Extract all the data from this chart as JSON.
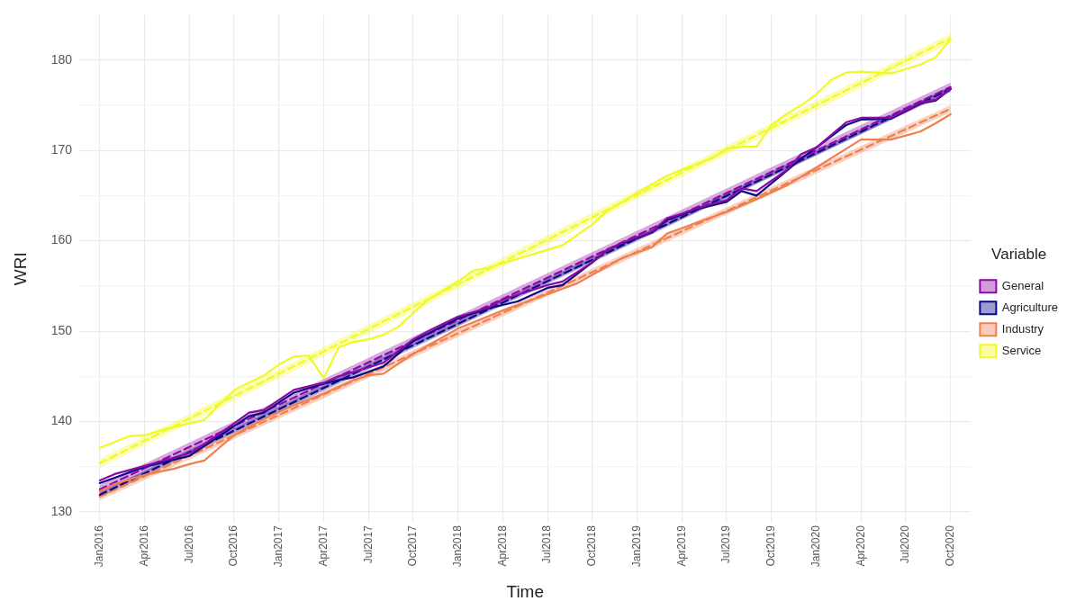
{
  "chart_data": {
    "type": "line",
    "xlabel": "Time",
    "ylabel": "WRI",
    "legend_title": "Variable",
    "legend": "right",
    "grid": true,
    "marker": "none",
    "xlim": [
      "2015-11-20",
      "2020-11-12"
    ],
    "ylim": [
      128.8,
      185
    ],
    "xticks": [
      {
        "value": "2016-01",
        "label": "Jan2016"
      },
      {
        "value": "2016-04",
        "label": "Apr2016"
      },
      {
        "value": "2016-07",
        "label": "Jul2016"
      },
      {
        "value": "2016-10",
        "label": "Oct2016"
      },
      {
        "value": "2017-01",
        "label": "Jan2017"
      },
      {
        "value": "2017-04",
        "label": "Apr2017"
      },
      {
        "value": "2017-07",
        "label": "Jul2017"
      },
      {
        "value": "2017-10",
        "label": "Oct2017"
      },
      {
        "value": "2018-01",
        "label": "Jan2018"
      },
      {
        "value": "2018-04",
        "label": "Apr2018"
      },
      {
        "value": "2018-07",
        "label": "Jul2018"
      },
      {
        "value": "2018-10",
        "label": "Oct2018"
      },
      {
        "value": "2019-01",
        "label": "Jan2019"
      },
      {
        "value": "2019-04",
        "label": "Apr2019"
      },
      {
        "value": "2019-07",
        "label": "Jul2019"
      },
      {
        "value": "2019-10",
        "label": "Oct2019"
      },
      {
        "value": "2020-01",
        "label": "Jan2020"
      },
      {
        "value": "2020-04",
        "label": "Apr2020"
      },
      {
        "value": "2020-07",
        "label": "Jul2020"
      },
      {
        "value": "2020-10",
        "label": "Oct2020"
      }
    ],
    "yticks": [
      130,
      {
        "value": 135,
        "label": null
      },
      140,
      {
        "value": 145,
        "label": null
      },
      150,
      {
        "value": 155,
        "label": null
      },
      160,
      {
        "value": 165,
        "label": null
      },
      170,
      {
        "value": 175,
        "label": null
      },
      180
    ],
    "series": [
      {
        "name": "General",
        "color": "#8b0aa5",
        "x": [
          "2016-01",
          "2016-02",
          "2016-04",
          "2016-07",
          "2016-08",
          "2016-10",
          "2016-11",
          "2016-12",
          "2017-02",
          "2017-03",
          "2017-04",
          "2017-05",
          "2017-06",
          "2017-08",
          "2017-10",
          "2017-11",
          "2017-12",
          "2018-01",
          "2018-03",
          "2018-04",
          "2018-07",
          "2018-08",
          "2018-10",
          "2018-11",
          "2018-12",
          "2019-02",
          "2019-03",
          "2019-04",
          "2019-05",
          "2019-07",
          "2019-08",
          "2019-09",
          "2019-11",
          "2019-12",
          "2020-01",
          "2020-03",
          "2020-04",
          "2020-06",
          "2020-08",
          "2020-09",
          "2020-10"
        ],
        "values": [
          133.5,
          134.2,
          135.1,
          136.5,
          137.5,
          139.8,
          141.0,
          141.3,
          143.5,
          143.9,
          144.3,
          145.0,
          145.5,
          146.5,
          149.1,
          150.0,
          150.8,
          151.6,
          152.6,
          153.5,
          155.1,
          155.5,
          157.6,
          159.0,
          159.8,
          161.0,
          162.5,
          163.0,
          163.6,
          164.5,
          165.8,
          165.5,
          167.8,
          169.6,
          170.3,
          173.1,
          173.6,
          173.6,
          175.3,
          175.6,
          176.8
        ]
      },
      {
        "name": "Agriculture",
        "color": "#0d0887",
        "x": [
          "2016-01",
          "2016-02",
          "2016-04",
          "2016-07",
          "2016-08",
          "2016-10",
          "2016-11",
          "2016-12",
          "2017-02",
          "2017-04",
          "2017-05",
          "2017-06",
          "2017-08",
          "2017-10",
          "2018-01",
          "2018-03",
          "2018-04",
          "2018-05",
          "2018-07",
          "2018-08",
          "2018-10",
          "2018-11",
          "2018-12",
          "2019-02",
          "2019-03",
          "2019-05",
          "2019-07",
          "2019-08",
          "2019-09",
          "2019-11",
          "2019-12",
          "2020-01",
          "2020-03",
          "2020-04",
          "2020-06",
          "2020-08",
          "2020-09",
          "2020-10"
        ],
        "values": [
          133.2,
          133.8,
          135.0,
          136.2,
          137.3,
          139.5,
          140.6,
          141.0,
          143.2,
          144.2,
          144.6,
          144.9,
          146.1,
          148.9,
          151.4,
          152.5,
          152.9,
          153.3,
          154.8,
          155.1,
          157.6,
          159.0,
          159.7,
          160.9,
          162.3,
          163.5,
          164.3,
          165.5,
          165.0,
          167.7,
          169.1,
          170.3,
          172.8,
          173.4,
          173.5,
          175.2,
          175.5,
          176.8
        ]
      },
      {
        "name": "Industry",
        "color": "#f07f4f",
        "x": [
          "2016-01",
          "2016-02",
          "2016-04",
          "2016-06",
          "2016-07",
          "2016-08",
          "2016-10",
          "2016-12",
          "2017-02",
          "2017-04",
          "2017-06",
          "2017-07",
          "2017-08",
          "2017-10",
          "2018-01",
          "2018-04",
          "2018-07",
          "2018-09",
          "2018-12",
          "2019-02",
          "2019-03",
          "2019-05",
          "2019-07",
          "2019-09",
          "2019-11",
          "2020-01",
          "2020-04",
          "2020-06",
          "2020-08",
          "2020-09",
          "2020-10"
        ],
        "values": [
          132.3,
          133.1,
          134.1,
          134.8,
          135.3,
          135.7,
          138.5,
          140.3,
          141.8,
          143.1,
          144.6,
          145.1,
          145.3,
          147.5,
          150.3,
          152.3,
          154.1,
          155.3,
          158.1,
          159.3,
          160.8,
          162.0,
          163.2,
          164.6,
          166.1,
          168.1,
          171.2,
          171.2,
          172.1,
          173.0,
          174.0
        ]
      },
      {
        "name": "Service",
        "color": "#f0f921",
        "x": [
          "2016-01",
          "2016-03",
          "2016-04",
          "2016-05",
          "2016-07",
          "2016-08",
          "2016-10",
          "2016-12",
          "2017-01",
          "2017-02",
          "2017-03",
          "2017-04",
          "2017-05",
          "2017-06",
          "2017-07",
          "2017-08",
          "2017-09",
          "2017-10",
          "2017-11",
          "2018-01",
          "2018-02",
          "2018-03",
          "2018-05",
          "2018-07",
          "2018-08",
          "2018-10",
          "2018-11",
          "2018-12",
          "2019-01",
          "2019-03",
          "2019-05",
          "2019-06",
          "2019-07",
          "2019-08",
          "2019-09",
          "2019-10",
          "2019-11",
          "2019-12",
          "2020-01",
          "2020-02",
          "2020-03",
          "2020-04",
          "2020-06",
          "2020-08",
          "2020-09",
          "2020-10"
        ],
        "values": [
          137.1,
          138.4,
          138.5,
          139.0,
          139.8,
          140.2,
          143.5,
          145.1,
          146.3,
          147.2,
          147.3,
          144.8,
          148.2,
          148.8,
          149.1,
          149.6,
          150.5,
          152.0,
          153.5,
          155.5,
          156.7,
          157.0,
          158.0,
          159.0,
          159.5,
          161.8,
          163.3,
          164.3,
          165.3,
          167.2,
          168.5,
          169.1,
          170.2,
          170.4,
          170.4,
          172.8,
          174.0,
          175.0,
          176.2,
          177.8,
          178.6,
          178.7,
          178.5,
          179.5,
          180.3,
          182.3
        ]
      },
      {
        "type": "line",
        "color": "#8b0aa5",
        "line_style": "dashed",
        "x": [
          "2016-01",
          "2020-10"
        ],
        "values": [
          132.5,
          177.0
        ],
        "lower": [
          132.0,
          176.5
        ],
        "upper": [
          133.0,
          177.5
        ]
      },
      {
        "type": "line",
        "color": "#0d0887",
        "line_style": "dashed",
        "x": [
          "2016-01",
          "2020-10"
        ],
        "values": [
          131.9,
          176.8
        ],
        "lower": [
          131.6,
          176.5
        ],
        "upper": [
          132.2,
          177.1
        ]
      },
      {
        "type": "line",
        "color": "#f07f4f",
        "line_style": "dashed",
        "x": [
          "2016-01",
          "2020-10"
        ],
        "values": [
          131.7,
          174.6
        ],
        "lower": [
          131.3,
          174.2
        ],
        "upper": [
          132.1,
          175.0
        ]
      },
      {
        "type": "line",
        "color": "#f0f921",
        "line_style": "dashed",
        "x": [
          "2016-01",
          "2020-10"
        ],
        "values": [
          135.4,
          182.4
        ],
        "lower": [
          134.9,
          181.9
        ],
        "upper": [
          135.9,
          182.9
        ]
      }
    ]
  }
}
